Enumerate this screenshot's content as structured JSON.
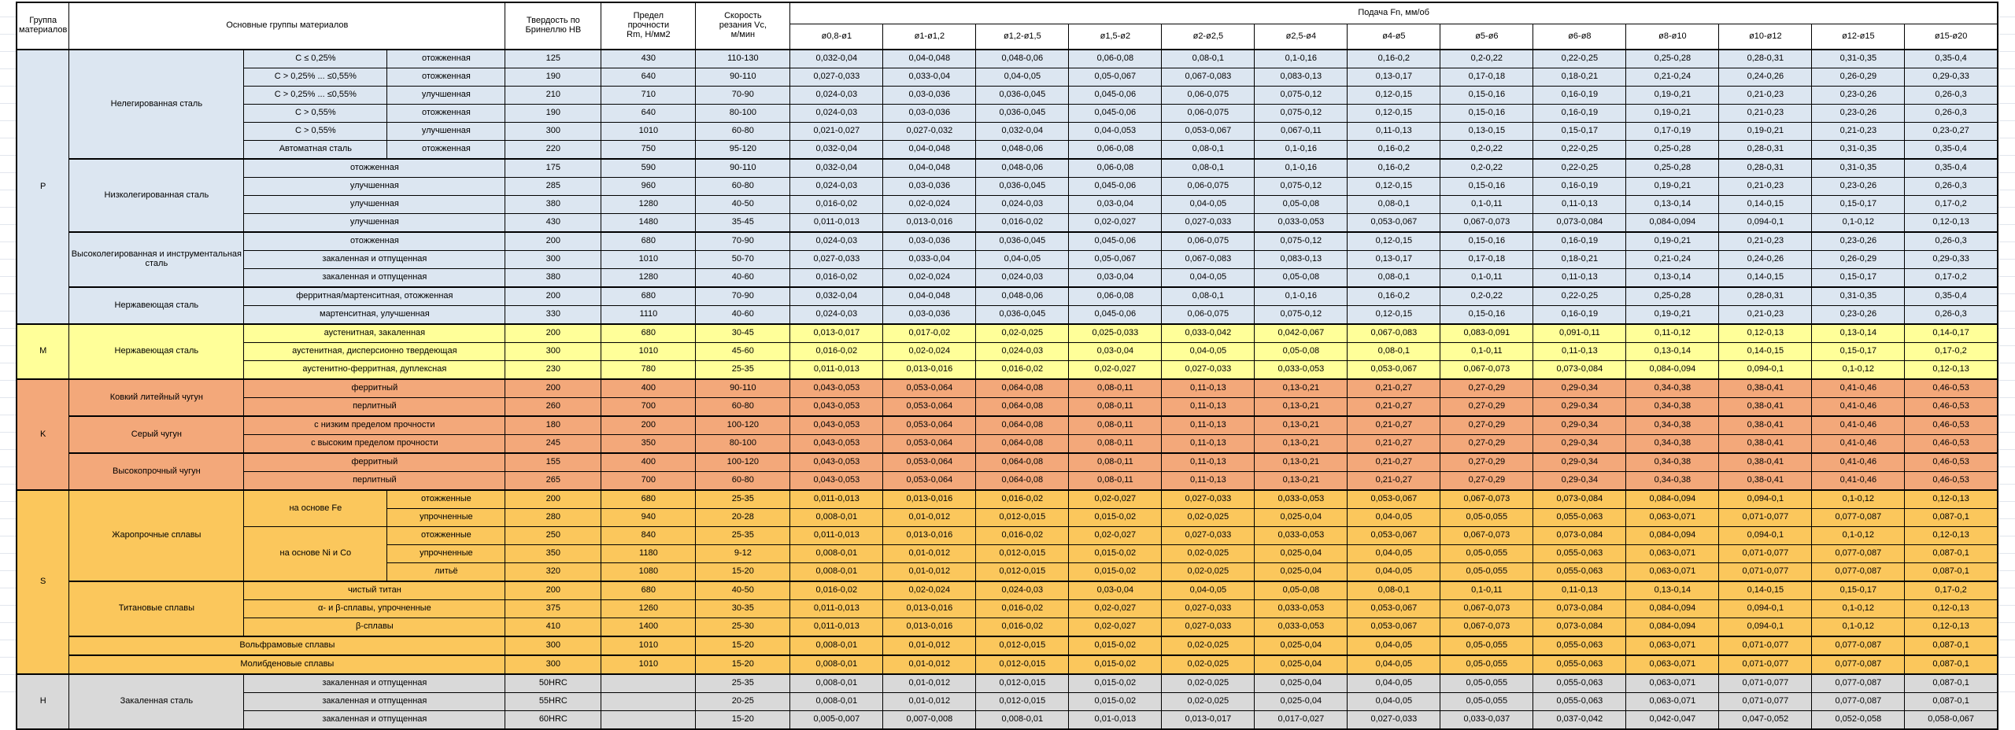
{
  "table": {
    "headers": {
      "group": "Группа\nматериалов",
      "material": "Основные группы материалов",
      "hardness": "Твердость по\nБринеллю НВ",
      "strength": "Предел\nпрочности\nRm, Н/мм2",
      "speed": "Скорость\nрезания Vc,\nм/мин",
      "feed": "Подача Fn, мм/об",
      "feed_columns": [
        "ø0,8-ø1",
        "ø1-ø1,2",
        "ø1,2-ø1,5",
        "ø1,5-ø2",
        "ø2-ø2,5",
        "ø2,5-ø4",
        "ø4-ø5",
        "ø5-ø6",
        "ø6-ø8",
        "ø8-ø10",
        "ø10-ø12",
        "ø12-ø15",
        "ø15-ø20"
      ]
    },
    "feed_presets": {
      "A": [
        "0,032-0,04",
        "0,04-0,048",
        "0,048-0,06",
        "0,06-0,08",
        "0,08-0,1",
        "0,1-0,16",
        "0,16-0,2",
        "0,2-0,22",
        "0,22-0,25",
        "0,25-0,28",
        "0,28-0,31",
        "0,31-0,35",
        "0,35-0,4"
      ],
      "B": [
        "0,027-0,033",
        "0,033-0,04",
        "0,04-0,05",
        "0,05-0,067",
        "0,067-0,083",
        "0,083-0,13",
        "0,13-0,17",
        "0,17-0,18",
        "0,18-0,21",
        "0,21-0,24",
        "0,24-0,26",
        "0,26-0,29",
        "0,29-0,33"
      ],
      "C": [
        "0,024-0,03",
        "0,03-0,036",
        "0,036-0,045",
        "0,045-0,06",
        "0,06-0,075",
        "0,075-0,12",
        "0,12-0,15",
        "0,15-0,16",
        "0,16-0,19",
        "0,19-0,21",
        "0,21-0,23",
        "0,23-0,26",
        "0,26-0,3"
      ],
      "D": [
        "0,021-0,027",
        "0,027-0,032",
        "0,032-0,04",
        "0,04-0,053",
        "0,053-0,067",
        "0,067-0,11",
        "0,11-0,13",
        "0,13-0,15",
        "0,15-0,17",
        "0,17-0,19",
        "0,19-0,21",
        "0,21-0,23",
        "0,23-0,27"
      ],
      "E": [
        "0,016-0,02",
        "0,02-0,024",
        "0,024-0,03",
        "0,03-0,04",
        "0,04-0,05",
        "0,05-0,08",
        "0,08-0,1",
        "0,1-0,11",
        "0,11-0,13",
        "0,13-0,14",
        "0,14-0,15",
        "0,15-0,17",
        "0,17-0,2"
      ],
      "F": [
        "0,011-0,013",
        "0,013-0,016",
        "0,016-0,02",
        "0,02-0,027",
        "0,027-0,033",
        "0,033-0,053",
        "0,053-0,067",
        "0,067-0,073",
        "0,073-0,084",
        "0,084-0,094",
        "0,094-0,1",
        "0,1-0,12",
        "0,12-0,13"
      ],
      "M": [
        "0,013-0,017",
        "0,017-0,02",
        "0,02-0,025",
        "0,025-0,033",
        "0,033-0,042",
        "0,042-0,067",
        "0,067-0,083",
        "0,083-0,091",
        "0,091-0,11",
        "0,11-0,12",
        "0,12-0,13",
        "0,13-0,14",
        "0,14-0,17"
      ],
      "K": [
        "0,043-0,053",
        "0,053-0,064",
        "0,064-0,08",
        "0,08-0,11",
        "0,11-0,13",
        "0,13-0,21",
        "0,21-0,27",
        "0,27-0,29",
        "0,29-0,34",
        "0,34-0,38",
        "0,38-0,41",
        "0,41-0,46",
        "0,46-0,53"
      ],
      "G": [
        "0,008-0,01",
        "0,01-0,012",
        "0,012-0,015",
        "0,015-0,02",
        "0,02-0,025",
        "0,025-0,04",
        "0,04-0,05",
        "0,05-0,055",
        "0,055-0,063",
        "0,063-0,071",
        "0,071-0,077",
        "0,077-0,087",
        "0,087-0,1"
      ],
      "H": [
        "0,005-0,007",
        "0,007-0,008",
        "0,008-0,01",
        "0,01-0,013",
        "0,013-0,017",
        "0,017-0,027",
        "0,027-0,033",
        "0,033-0,037",
        "0,037-0,042",
        "0,042-0,047",
        "0,047-0,052",
        "0,052-0,058",
        "0,058-0,067"
      ]
    },
    "sections": [
      {
        "group": "P",
        "color": "#DCE6F1",
        "rows": [
          {
            "a": "Нелегированная сталь",
            "a_rs": 6,
            "b": "C ≤ 0,25%",
            "c": "отожженная",
            "hb": "125",
            "rm": "430",
            "vc": "110-130",
            "f": "A"
          },
          {
            "b": "C > 0,25% ... ≤0,55%",
            "c": "отожженная",
            "hb": "190",
            "rm": "640",
            "vc": "90-110",
            "f": "B"
          },
          {
            "b": "C > 0,25% ... ≤0,55%",
            "c": "улучшенная",
            "hb": "210",
            "rm": "710",
            "vc": "70-90",
            "f": "C"
          },
          {
            "b": "C > 0,55%",
            "c": "отожженная",
            "hb": "190",
            "rm": "640",
            "vc": "80-100",
            "f": "C"
          },
          {
            "b": "C > 0,55%",
            "c": "улучшенная",
            "hb": "300",
            "rm": "1010",
            "vc": "60-80",
            "f": "D"
          },
          {
            "b": "Автоматная сталь",
            "c": "отожженная",
            "hb": "220",
            "rm": "750",
            "vc": "95-120",
            "f": "A"
          },
          {
            "a": "Низколегированная сталь",
            "a_rs": 4,
            "bc": "отожженная",
            "hb": "175",
            "rm": "590",
            "vc": "90-110",
            "f": "A",
            "t": 1
          },
          {
            "bc": "улучшенная",
            "hb": "285",
            "rm": "960",
            "vc": "60-80",
            "f": "C"
          },
          {
            "bc": "улучшенная",
            "hb": "380",
            "rm": "1280",
            "vc": "40-50",
            "f": "E"
          },
          {
            "bc": "улучшенная",
            "hb": "430",
            "rm": "1480",
            "vc": "35-45",
            "f": "F"
          },
          {
            "a": "Высоколегированная и инструментальная сталь",
            "a_rs": 3,
            "bc": "отожженная",
            "hb": "200",
            "rm": "680",
            "vc": "70-90",
            "f": "C",
            "t": 1
          },
          {
            "bc": "закаленная и отпущенная",
            "hb": "300",
            "rm": "1010",
            "vc": "50-70",
            "f": "B"
          },
          {
            "bc": "закаленная и отпущенная",
            "hb": "380",
            "rm": "1280",
            "vc": "40-60",
            "f": "E"
          },
          {
            "a": "Нержавеющая сталь",
            "a_rs": 2,
            "bc": "ферритная/мартенситная, отожженная",
            "hb": "200",
            "rm": "680",
            "vc": "70-90",
            "f": "A",
            "t": 1
          },
          {
            "bc": "мартенситная, улучшенная",
            "hb": "330",
            "rm": "1110",
            "vc": "40-60",
            "f": "C"
          }
        ]
      },
      {
        "group": "M",
        "color": "#FFFF99",
        "rows": [
          {
            "a": "Нержавеющая сталь",
            "a_rs": 3,
            "bc": "аустенитная, закаленная",
            "hb": "200",
            "rm": "680",
            "vc": "30-45",
            "f": "M"
          },
          {
            "bc": "аустенитная, дисперсионно твердеющая",
            "hb": "300",
            "rm": "1010",
            "vc": "45-60",
            "f": "E"
          },
          {
            "bc": "аустенитно-ферритная, дуплексная",
            "hb": "230",
            "rm": "780",
            "vc": "25-35",
            "f": "F"
          }
        ]
      },
      {
        "group": "K",
        "color": "#F3A87A",
        "rows": [
          {
            "a": "Ковкий литейный чугун",
            "a_rs": 2,
            "bc": "ферритный",
            "hb": "200",
            "rm": "400",
            "vc": "90-110",
            "f": "K"
          },
          {
            "bc": "перлитный",
            "hb": "260",
            "rm": "700",
            "vc": "60-80",
            "f": "K"
          },
          {
            "a": "Серый чугун",
            "a_rs": 2,
            "bc": "с низким пределом прочности",
            "hb": "180",
            "rm": "200",
            "vc": "100-120",
            "f": "K",
            "t": 1
          },
          {
            "bc": "с высоким пределом прочности",
            "hb": "245",
            "rm": "350",
            "vc": "80-100",
            "f": "K"
          },
          {
            "a": "Высокопрочный чугун",
            "a_rs": 2,
            "bc": "ферритный",
            "hb": "155",
            "rm": "400",
            "vc": "100-120",
            "f": "K",
            "t": 1
          },
          {
            "bc": "перлитный",
            "hb": "265",
            "rm": "700",
            "vc": "60-80",
            "f": "K"
          }
        ]
      },
      {
        "group": "S",
        "color": "#FBC75C",
        "rows": [
          {
            "a": "Жаропрочные сплавы",
            "a_rs": 5,
            "b": "на основе Fe",
            "b_rs": 2,
            "c": "отожженные",
            "hb": "200",
            "rm": "680",
            "vc": "25-35",
            "f": "F"
          },
          {
            "c": "упрочненные",
            "hb": "280",
            "rm": "940",
            "vc": "20-28",
            "f": "G"
          },
          {
            "b": "на основе Ni и Co",
            "b_rs": 3,
            "c": "отожженные",
            "hb": "250",
            "rm": "840",
            "vc": "25-35",
            "f": "F"
          },
          {
            "c": "упрочненные",
            "hb": "350",
            "rm": "1180",
            "vc": "9-12",
            "f": "G"
          },
          {
            "c": "литьё",
            "hb": "320",
            "rm": "1080",
            "vc": "15-20",
            "f": "G"
          },
          {
            "a": "Титановые сплавы",
            "a_rs": 3,
            "bc": "чистый титан",
            "hb": "200",
            "rm": "680",
            "vc": "40-50",
            "f": "E",
            "t": 1
          },
          {
            "bc": "α- и β-сплавы, упрочненные",
            "hb": "375",
            "rm": "1260",
            "vc": "30-35",
            "f": "F"
          },
          {
            "bc": "β-сплавы",
            "hb": "410",
            "rm": "1400",
            "vc": "25-30",
            "f": "F"
          },
          {
            "abc": "Вольфрамовые сплавы",
            "hb": "300",
            "rm": "1010",
            "vc": "15-20",
            "f": "G",
            "t": 1
          },
          {
            "abc": "Молибденовые сплавы",
            "hb": "300",
            "rm": "1010",
            "vc": "15-20",
            "f": "G",
            "t": 1
          }
        ]
      },
      {
        "group": "H",
        "color": "#D9D9D9",
        "rows": [
          {
            "a": "Закаленная сталь",
            "a_rs": 3,
            "bc": "закаленная и отпущенная",
            "hb": "50HRC",
            "rm": "",
            "vc": "25-35",
            "f": "G"
          },
          {
            "bc": "закаленная и отпущенная",
            "hb": "55HRC",
            "rm": "",
            "vc": "20-25",
            "f": "G"
          },
          {
            "bc": "закаленная и отпущенная",
            "hb": "60HRC",
            "rm": "",
            "vc": "15-20",
            "f": "H"
          }
        ]
      }
    ]
  }
}
